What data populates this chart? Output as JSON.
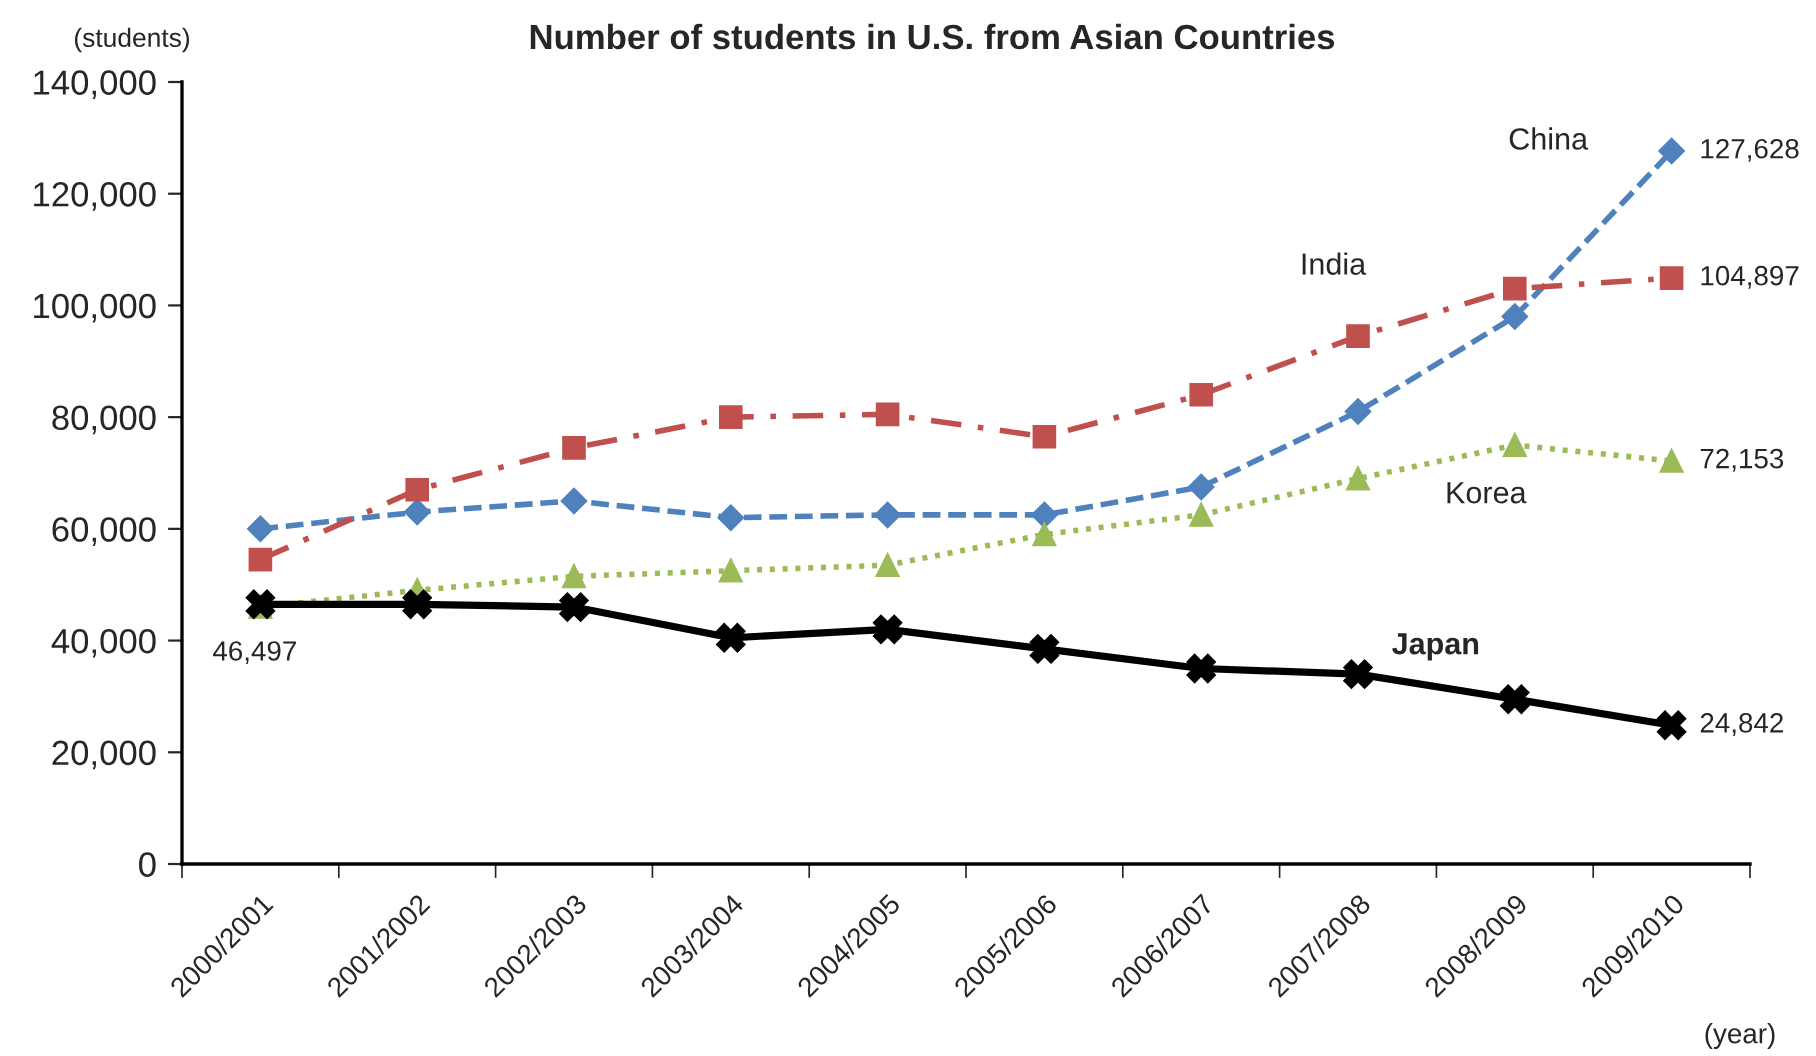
{
  "chart_data": {
    "type": "line",
    "title": "Number of students in U.S. from Asian Countries",
    "ylabel": "(students)",
    "xlabel": "(year)",
    "categories": [
      "2000/2001",
      "2001/2002",
      "2002/2003",
      "2003/2004",
      "2004/2005",
      "2005/2006",
      "2006/2007",
      "2007/2008",
      "2008/2009",
      "2009/2010"
    ],
    "ylim": [
      0,
      140000
    ],
    "yticks": [
      0,
      {
        "value": 20000,
        "label": "20,000"
      },
      {
        "value": 40000,
        "label": "40,000"
      },
      {
        "value": 60000,
        "label": "60,000"
      },
      {
        "value": 80000,
        "label": "80,000"
      },
      {
        "value": 100000,
        "label": "100,000"
      },
      {
        "value": 120000,
        "label": "120,000"
      },
      {
        "value": 140000,
        "label": "140,000"
      }
    ],
    "grid": false,
    "series": [
      {
        "name": "China",
        "color": "#4f81bd",
        "marker": "diamond",
        "line_style": "dashed",
        "values": [
          60000,
          63000,
          65000,
          62000,
          62500,
          62500,
          67500,
          81000,
          98000,
          127628
        ],
        "value_labels": [
          null,
          null,
          null,
          null,
          null,
          null,
          null,
          null,
          null,
          "127,628"
        ]
      },
      {
        "name": "India",
        "color": "#c0504d",
        "marker": "square",
        "line_style": "dashdot",
        "values": [
          54500,
          67000,
          74500,
          80000,
          80500,
          76500,
          84000,
          94500,
          103000,
          104897
        ],
        "value_labels": [
          null,
          null,
          null,
          null,
          null,
          null,
          null,
          null,
          null,
          "104,897"
        ]
      },
      {
        "name": "Korea",
        "color": "#9bbb59",
        "marker": "triangle",
        "line_style": "dotted",
        "values": [
          46000,
          49000,
          51500,
          52500,
          53500,
          59000,
          62500,
          69000,
          75000,
          72153
        ],
        "value_labels": [
          null,
          null,
          null,
          null,
          null,
          null,
          null,
          null,
          null,
          "72,153"
        ]
      },
      {
        "name": "Japan",
        "color": "#000000",
        "marker": "cross",
        "line_style": "solid",
        "values": [
          46497,
          46500,
          46000,
          40500,
          42000,
          38500,
          35000,
          34000,
          29500,
          24842
        ],
        "value_labels": [
          "46,497",
          null,
          null,
          null,
          null,
          null,
          null,
          null,
          null,
          "24,842"
        ]
      }
    ]
  }
}
